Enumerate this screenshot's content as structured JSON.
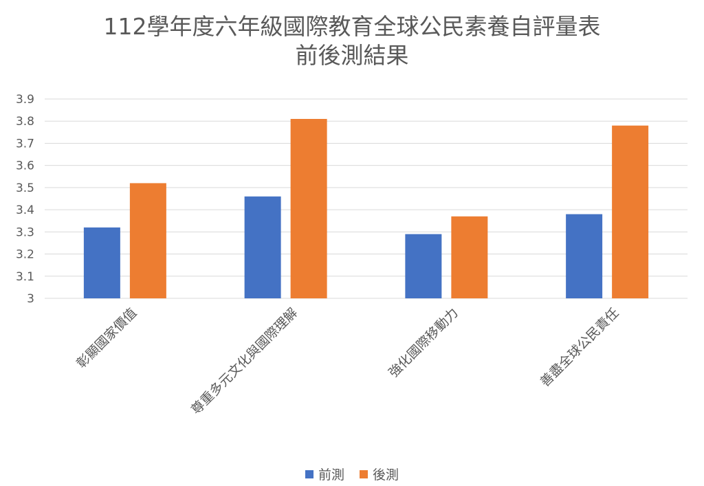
{
  "chart_data": {
    "type": "bar",
    "title": [
      "112學年度六年級國際教育全球公民素養自評量表",
      "前後測結果"
    ],
    "categories": [
      "彰顯國家價值",
      "尊重多元文化與國際理解",
      "強化國際移動力",
      "善盡全球公民責任"
    ],
    "series": [
      {
        "name": "前測",
        "values": [
          3.32,
          3.46,
          3.29,
          3.38
        ],
        "color": "#4472C4"
      },
      {
        "name": "後測",
        "values": [
          3.52,
          3.81,
          3.37,
          3.78
        ],
        "color": "#ED7D31"
      }
    ],
    "ylim": [
      3,
      3.9
    ],
    "yticks": [
      "3",
      "3.1",
      "3.2",
      "3.3",
      "3.4",
      "3.5",
      "3.6",
      "3.7",
      "3.8",
      "3.9"
    ],
    "grid": true,
    "legend": "bottom"
  }
}
